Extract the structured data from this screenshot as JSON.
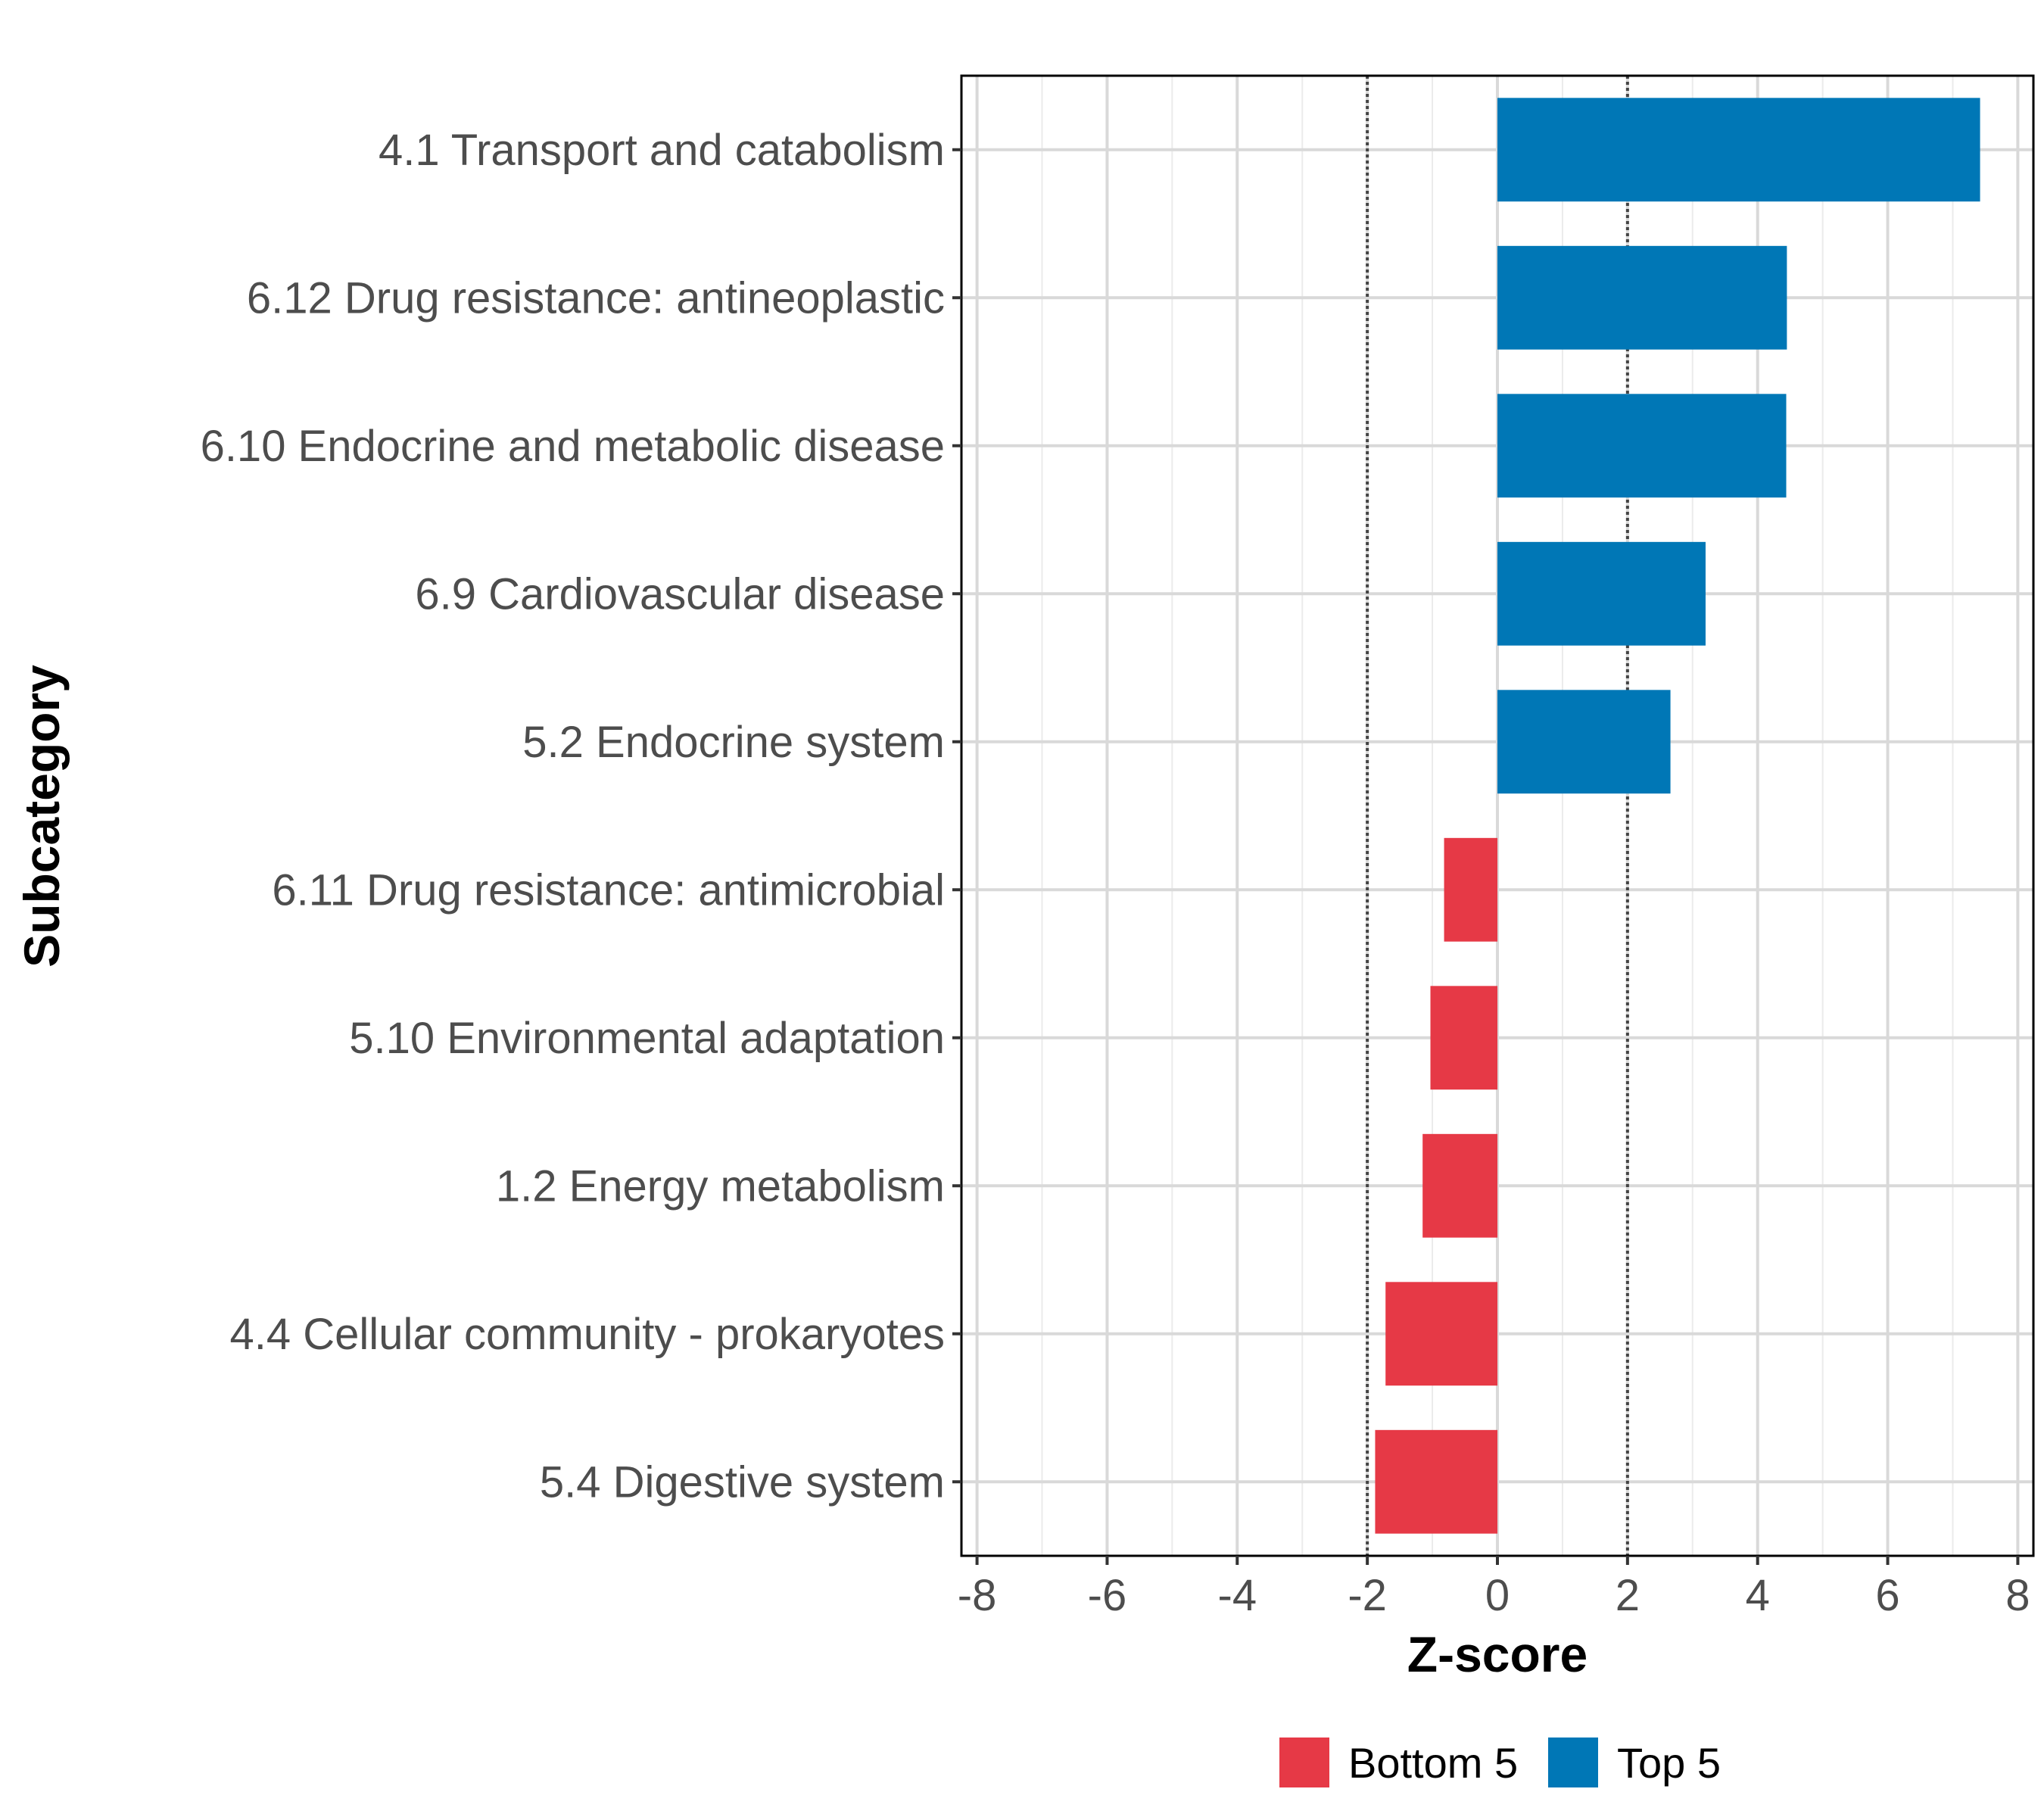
{
  "chart_data": {
    "type": "bar",
    "orientation": "horizontal",
    "xlabel": "Z-score",
    "ylabel": "Subcategory",
    "xlim": [
      -8,
      8
    ],
    "xticks": [
      -8,
      -6,
      -4,
      -2,
      0,
      2,
      4,
      6,
      8
    ],
    "reference_lines": [
      -2,
      2
    ],
    "grid": true,
    "legend_position": "bottom",
    "categories": [
      "4.1 Transport and catabolism",
      "6.12 Drug resistance: antineoplastic",
      "6.10 Endocrine and metabolic disease",
      "6.9 Cardiovascular disease",
      "5.2 Endocrine system",
      "6.11 Drug resistance: antimicrobial",
      "5.10 Environmental adaptation",
      "1.2 Energy metabolism",
      "4.4 Cellular community - prokaryotes",
      "5.4 Digestive system"
    ],
    "values": [
      7.42,
      4.45,
      4.44,
      3.2,
      2.66,
      -0.82,
      -1.03,
      -1.15,
      -1.72,
      -1.88
    ],
    "groups": [
      "Top 5",
      "Top 5",
      "Top 5",
      "Top 5",
      "Top 5",
      "Bottom 5",
      "Bottom 5",
      "Bottom 5",
      "Bottom 5",
      "Bottom 5"
    ],
    "legend": [
      {
        "name": "Bottom 5",
        "color": "#e63946"
      },
      {
        "name": "Top 5",
        "color": "#0077b6"
      }
    ]
  }
}
